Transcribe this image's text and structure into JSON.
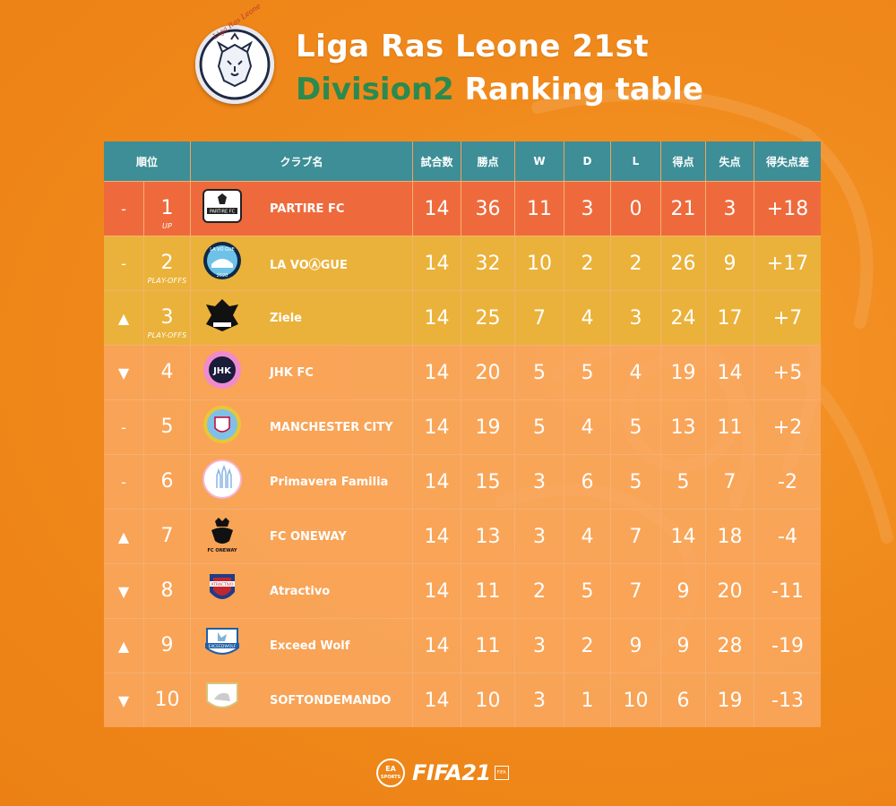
{
  "header": {
    "logo_text": "Liga Ras Leone",
    "title_line1": "Liga Ras Leone 21st",
    "title_division": "Division2",
    "title_rest": " Ranking table"
  },
  "colors": {
    "background": "#ee8418",
    "header_bg": "#3d8e96",
    "row_promoted": "#ee6a3c",
    "row_playoffs": "#eab23a",
    "row_normal": "#f9aa64",
    "division_text": "#2b8a4f"
  },
  "table": {
    "headers": {
      "rank": "順位",
      "club": "クラブ名",
      "played": "試合数",
      "points": "勝点",
      "won": "W",
      "drawn": "D",
      "lost": "L",
      "goals_for": "得点",
      "goals_against": "失点",
      "goal_diff": "得失点差"
    },
    "rows": [
      {
        "trend": "-",
        "pos": "1",
        "tag": "UP",
        "club": "PARTIRE FC",
        "played": "14",
        "points": "36",
        "won": "11",
        "drawn": "3",
        "lost": "0",
        "gf": "21",
        "ga": "3",
        "gd": "+18",
        "crest": "partire-fc-crest"
      },
      {
        "trend": "-",
        "pos": "2",
        "tag": "PLAY-OFFS",
        "club": "LA VOⒶGUE",
        "played": "14",
        "points": "32",
        "won": "10",
        "drawn": "2",
        "lost": "2",
        "gf": "26",
        "ga": "9",
        "gd": "+17",
        "crest": "la-voague-crest"
      },
      {
        "trend": "▲",
        "pos": "3",
        "tag": "PLAY-OFFS",
        "club": "Ziele",
        "played": "14",
        "points": "25",
        "won": "7",
        "drawn": "4",
        "lost": "3",
        "gf": "24",
        "ga": "17",
        "gd": "+7",
        "crest": "ziele-crest"
      },
      {
        "trend": "▼",
        "pos": "4",
        "tag": "",
        "club": "JHK FC",
        "played": "14",
        "points": "20",
        "won": "5",
        "drawn": "5",
        "lost": "4",
        "gf": "19",
        "ga": "14",
        "gd": "+5",
        "crest": "jhk-fc-crest"
      },
      {
        "trend": "-",
        "pos": "5",
        "tag": "",
        "club": "MANCHESTER CITY",
        "played": "14",
        "points": "19",
        "won": "5",
        "drawn": "4",
        "lost": "5",
        "gf": "13",
        "ga": "11",
        "gd": "+2",
        "crest": "manchester-city-crest"
      },
      {
        "trend": "-",
        "pos": "6",
        "tag": "",
        "club": "Primavera Familia",
        "played": "14",
        "points": "15",
        "won": "3",
        "drawn": "6",
        "lost": "5",
        "gf": "5",
        "ga": "7",
        "gd": "-2",
        "crest": "primavera-familia-crest"
      },
      {
        "trend": "▲",
        "pos": "7",
        "tag": "",
        "club": "FC ONEWAY",
        "played": "14",
        "points": "13",
        "won": "3",
        "drawn": "4",
        "lost": "7",
        "gf": "14",
        "ga": "18",
        "gd": "-4",
        "crest": "fc-oneway-crest"
      },
      {
        "trend": "▼",
        "pos": "8",
        "tag": "",
        "club": "Atractivo",
        "played": "14",
        "points": "11",
        "won": "2",
        "drawn": "5",
        "lost": "7",
        "gf": "9",
        "ga": "20",
        "gd": "-11",
        "crest": "atractivo-crest"
      },
      {
        "trend": "▲",
        "pos": "9",
        "tag": "",
        "club": "Exceed Wolf",
        "played": "14",
        "points": "11",
        "won": "3",
        "drawn": "2",
        "lost": "9",
        "gf": "9",
        "ga": "28",
        "gd": "-19",
        "crest": "exceed-wolf-crest"
      },
      {
        "trend": "▼",
        "pos": "10",
        "tag": "",
        "club": "SOFTONDEMANDO",
        "played": "14",
        "points": "10",
        "won": "3",
        "drawn": "1",
        "lost": "10",
        "gf": "6",
        "ga": "19",
        "gd": "-13",
        "crest": "softondemando-crest"
      }
    ]
  },
  "crest_labels": {
    "partire": "PARTIRE FC",
    "la_vogue_top": "LA VO GUE",
    "la_vogue_year": "2020",
    "fc_oneway": "FC ONEWAY",
    "atractivo": "ATRACTIVO",
    "exceed_wolf": "EXCEEDWOLF",
    "jhk": "JHK"
  },
  "footer": {
    "ea_top": "EA",
    "ea_bottom": "SPORTS",
    "fifa": "FIFA",
    "fifa_num": "21",
    "fifa_badge": "FIFA"
  }
}
